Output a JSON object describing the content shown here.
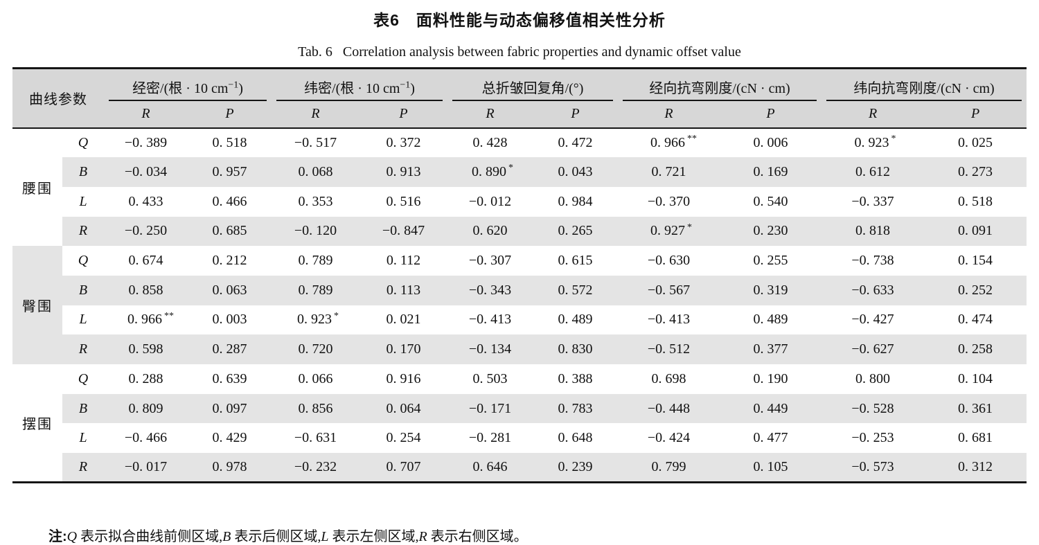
{
  "title": "表6　面料性能与动态偏移值相关性分析",
  "subtitle": "Tab. 6   Correlation analysis between fabric properties and dynamic offset value",
  "colors": {
    "header_bg": "#d7d7d7",
    "stripe_bg": "#e4e4e4",
    "rule": "#151515",
    "text": "#111111"
  },
  "table": {
    "param_header": "曲线参数",
    "sub_headers": [
      "R",
      "P"
    ],
    "col_groups": [
      {
        "label": "经密/(根 · 10 cm",
        "sup": "−1",
        "suffix": ")"
      },
      {
        "label": "纬密/(根 · 10 cm",
        "sup": "−1",
        "suffix": ")"
      },
      {
        "label": "总折皱回复角/(°)",
        "sup": "",
        "suffix": ""
      },
      {
        "label": "经向抗弯刚度/(cN · cm)",
        "sup": "",
        "suffix": ""
      },
      {
        "label": "纬向抗弯刚度/(cN · cm)",
        "sup": "",
        "suffix": ""
      }
    ],
    "groups": [
      {
        "label": "腰围",
        "shaded": false,
        "rows": [
          {
            "param": "Q",
            "values": [
              "−0. 389",
              "0. 518",
              "−0. 517",
              "0. 372",
              "0. 428",
              "0. 472",
              "0. 966**",
              "0. 006",
              "0. 923*",
              "0. 025"
            ]
          },
          {
            "param": "B",
            "values": [
              "−0. 034",
              "0. 957",
              "0. 068",
              "0. 913",
              "0. 890*",
              "0. 043",
              "0. 721",
              "0. 169",
              "0. 612",
              "0. 273"
            ]
          },
          {
            "param": "L",
            "values": [
              "0. 433",
              "0. 466",
              "0. 353",
              "0. 516",
              "−0. 012",
              "0. 984",
              "−0. 370",
              "0. 540",
              "−0. 337",
              "0. 518"
            ]
          },
          {
            "param": "R",
            "values": [
              "−0. 250",
              "0. 685",
              "−0. 120",
              "−0. 847",
              "0. 620",
              "0. 265",
              "0. 927*",
              "0. 230",
              "0. 818",
              "0. 091"
            ]
          }
        ]
      },
      {
        "label": "臀围",
        "shaded": true,
        "rows": [
          {
            "param": "Q",
            "values": [
              "0. 674",
              "0. 212",
              "0. 789",
              "0. 112",
              "−0. 307",
              "0. 615",
              "−0. 630",
              "0. 255",
              "−0. 738",
              "0. 154"
            ]
          },
          {
            "param": "B",
            "values": [
              "0. 858",
              "0. 063",
              "0. 789",
              "0. 113",
              "−0. 343",
              "0. 572",
              "−0. 567",
              "0. 319",
              "−0. 633",
              "0. 252"
            ]
          },
          {
            "param": "L",
            "values": [
              "0. 966**",
              "0. 003",
              "0. 923*",
              "0. 021",
              "−0. 413",
              "0. 489",
              "−0. 413",
              "0. 489",
              "−0. 427",
              "0. 474"
            ]
          },
          {
            "param": "R",
            "values": [
              "0. 598",
              "0. 287",
              "0. 720",
              "0. 170",
              "−0. 134",
              "0. 830",
              "−0. 512",
              "0. 377",
              "−0. 627",
              "0. 258"
            ]
          }
        ]
      },
      {
        "label": "摆围",
        "shaded": false,
        "rows": [
          {
            "param": "Q",
            "values": [
              "0. 288",
              "0. 639",
              "0. 066",
              "0. 916",
              "0. 503",
              "0. 388",
              "0. 698",
              "0. 190",
              "0. 800",
              "0. 104"
            ]
          },
          {
            "param": "B",
            "values": [
              "0. 809",
              "0. 097",
              "0. 856",
              "0. 064",
              "−0. 171",
              "0. 783",
              "−0. 448",
              "0. 449",
              "−0. 528",
              "0. 361"
            ]
          },
          {
            "param": "L",
            "values": [
              "−0. 466",
              "0. 429",
              "−0. 631",
              "0. 254",
              "−0. 281",
              "0. 648",
              "−0. 424",
              "0. 477",
              "−0. 253",
              "0. 681"
            ]
          },
          {
            "param": "R",
            "values": [
              "−0. 017",
              "0. 978",
              "−0. 232",
              "0. 707",
              "0. 646",
              "0. 239",
              "0. 799",
              "0. 105",
              "−0. 573",
              "0. 312"
            ]
          }
        ]
      }
    ]
  },
  "note": {
    "segments": [
      {
        "text": "注:",
        "bold": true
      },
      {
        "text": "Q",
        "italic": true
      },
      {
        "text": " 表示拟合曲线前侧区域,"
      },
      {
        "text": "B",
        "italic": true
      },
      {
        "text": " 表示后侧区域,"
      },
      {
        "text": "L",
        "italic": true
      },
      {
        "text": " 表示左侧区域,"
      },
      {
        "text": "R",
        "italic": true
      },
      {
        "text": " 表示右侧区域。"
      }
    ]
  }
}
